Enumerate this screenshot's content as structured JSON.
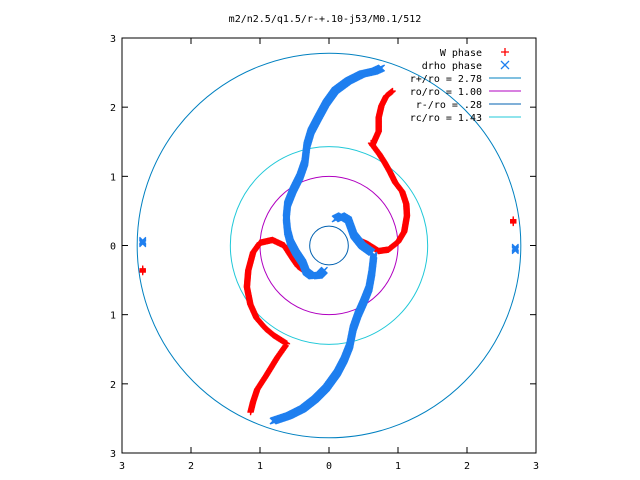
{
  "chart_data": {
    "type": "scatter",
    "title": "m2/n2.5/q1.5/r-+.10-j53/M0.1/512",
    "xlim": [
      -3,
      3
    ],
    "ylim": [
      -3,
      3
    ],
    "xticks": [
      -3,
      -2,
      -1,
      0,
      1,
      2,
      3
    ],
    "yticks": [
      -3,
      -2,
      -1,
      0,
      1,
      2,
      3
    ],
    "xtick_labels": [
      "3",
      "2",
      "1",
      "0",
      "1",
      "2",
      "3"
    ],
    "ytick_labels": [
      "3",
      "2",
      "1",
      "0",
      "1",
      "2",
      "3"
    ],
    "grid": false,
    "legend_position": "top-right",
    "series": [
      {
        "name": "W phase",
        "marker": "+",
        "color": "#ff0000",
        "arms": [
          [
            [
              0.61,
              1.48
            ],
            [
              0.73,
              1.32
            ],
            [
              0.8,
              1.21
            ],
            [
              0.88,
              1.07
            ],
            [
              0.96,
              0.91
            ],
            [
              1.06,
              0.78
            ],
            [
              1.12,
              0.6
            ],
            [
              1.13,
              0.43
            ],
            [
              1.09,
              0.2
            ],
            [
              1.0,
              0.05
            ],
            [
              0.86,
              -0.06
            ],
            [
              0.72,
              -0.08
            ],
            [
              0.56,
              0.02
            ],
            [
              0.47,
              0.06
            ],
            [
              0.42,
              0.05
            ]
          ],
          [
            [
              0.63,
              1.45
            ],
            [
              0.72,
              1.65
            ],
            [
              0.72,
              1.85
            ],
            [
              0.76,
              2.02
            ],
            [
              0.83,
              2.16
            ],
            [
              0.93,
              2.24
            ]
          ],
          [
            [
              -0.61,
              -1.42
            ],
            [
              -0.8,
              -1.3
            ],
            [
              -0.92,
              -1.2
            ],
            [
              -1.05,
              -1.05
            ],
            [
              -1.14,
              -0.85
            ],
            [
              -1.19,
              -0.6
            ],
            [
              -1.17,
              -0.36
            ],
            [
              -1.1,
              -0.1
            ],
            [
              -1.0,
              0.04
            ],
            [
              -0.82,
              0.08
            ],
            [
              -0.65,
              0.0
            ],
            [
              -0.52,
              -0.2
            ],
            [
              -0.45,
              -0.3
            ],
            [
              -0.38,
              -0.35
            ],
            [
              -0.35,
              -0.38
            ]
          ],
          [
            [
              -0.63,
              -1.45
            ],
            [
              -0.75,
              -1.62
            ],
            [
              -0.91,
              -1.88
            ],
            [
              -1.04,
              -2.08
            ],
            [
              -1.1,
              -2.26
            ],
            [
              -1.14,
              -2.42
            ]
          ],
          [
            [
              2.67,
              0.35
            ],
            [
              -2.7,
              -0.36
            ]
          ]
        ]
      },
      {
        "name": "drho phase",
        "marker": "x",
        "color": "#1f7fef",
        "arms": [
          [
            [
              -0.6,
              0.2
            ],
            [
              -0.62,
              0.4
            ],
            [
              -0.6,
              0.6
            ],
            [
              -0.52,
              0.8
            ],
            [
              -0.42,
              1.0
            ],
            [
              -0.35,
              1.2
            ],
            [
              -0.32,
              1.45
            ],
            [
              -0.26,
              1.65
            ],
            [
              -0.16,
              1.84
            ],
            [
              -0.04,
              2.06
            ],
            [
              0.09,
              2.24
            ],
            [
              0.28,
              2.38
            ],
            [
              0.48,
              2.48
            ],
            [
              0.66,
              2.52
            ],
            [
              0.77,
              2.57
            ]
          ],
          [
            [
              -0.6,
              0.2
            ],
            [
              -0.56,
              0.05
            ],
            [
              -0.48,
              -0.1
            ],
            [
              -0.38,
              -0.25
            ],
            [
              -0.33,
              -0.38
            ],
            [
              -0.25,
              -0.44
            ],
            [
              -0.14,
              -0.43
            ],
            [
              -0.06,
              -0.35
            ]
          ],
          [
            [
              0.65,
              -0.14
            ],
            [
              0.62,
              -0.4
            ],
            [
              0.58,
              -0.62
            ],
            [
              0.5,
              -0.82
            ],
            [
              0.42,
              -1.0
            ],
            [
              0.35,
              -1.2
            ],
            [
              0.3,
              -1.45
            ],
            [
              0.22,
              -1.65
            ],
            [
              0.12,
              -1.84
            ],
            [
              -0.04,
              -2.06
            ],
            [
              -0.2,
              -2.22
            ],
            [
              -0.38,
              -2.36
            ],
            [
              -0.58,
              -2.46
            ],
            [
              -0.82,
              -2.54
            ]
          ],
          [
            [
              0.62,
              -0.1
            ],
            [
              0.48,
              0.0
            ],
            [
              0.36,
              0.15
            ],
            [
              0.28,
              0.37
            ],
            [
              0.18,
              0.43
            ],
            [
              0.08,
              0.38
            ]
          ],
          [
            [
              -2.7,
              0.05
            ],
            [
              2.7,
              -0.05
            ]
          ]
        ]
      }
    ],
    "circles": [
      {
        "label": "r+/ro = 2.78",
        "radius": 2.78,
        "color": "#0080c0"
      },
      {
        "label": "ro/ro = 1.00",
        "radius": 1.0,
        "color": "#b000c0"
      },
      {
        "label": "r-/ro = .28",
        "radius": 0.28,
        "color": "#0060b0"
      },
      {
        "label": "rc/ro = 1.43",
        "radius": 1.43,
        "color": "#20c8d8"
      }
    ]
  }
}
